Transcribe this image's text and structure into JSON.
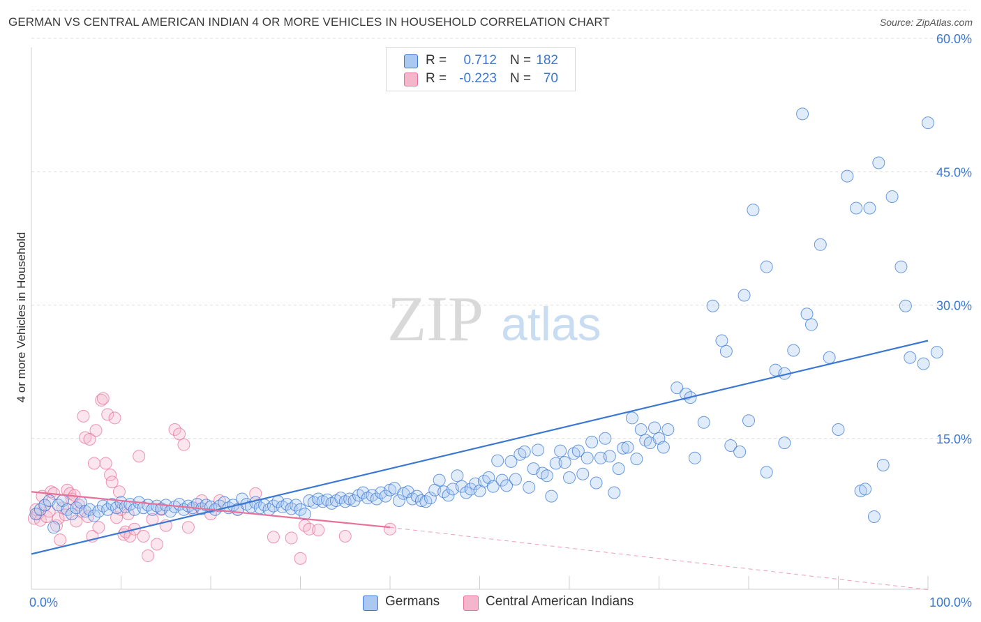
{
  "title": "GERMAN VS CENTRAL AMERICAN INDIAN 4 OR MORE VEHICLES IN HOUSEHOLD CORRELATION CHART",
  "source": "Source: ZipAtlas.com",
  "watermark": {
    "zip": "ZIP",
    "atlas": "atlas"
  },
  "colors": {
    "blue": "#3a78d4",
    "blue_fill": "#aac8f0",
    "pink": "#e8719a",
    "pink_fill": "#f4b6cb",
    "grid": "#dcdcdc",
    "axis_text": "#3a78d4"
  },
  "stats": {
    "r_label": "R =",
    "n_label": "N =",
    "rows": [
      {
        "series": "Germans",
        "r": "0.712",
        "n": "182"
      },
      {
        "series": "Central American Indians",
        "r": "-0.223",
        "n": "70"
      }
    ]
  },
  "legend": {
    "germans": "Germans",
    "cai": "Central American Indians"
  },
  "chart_data": {
    "type": "scatter",
    "title": "GERMAN VS CENTRAL AMERICAN INDIAN 4 OR MORE VEHICLES IN HOUSEHOLD CORRELATION CHART",
    "xlabel": "",
    "ylabel": "4 or more Vehicles in Household",
    "xlim": [
      0,
      100
    ],
    "ylim": [
      0,
      63
    ],
    "x_tick_labels": [
      {
        "value": 0,
        "label": "0.0%"
      },
      {
        "value": 100,
        "label": "100.0%"
      }
    ],
    "y_tick_labels": [
      {
        "value": 15,
        "label": "15.0%"
      },
      {
        "value": 30,
        "label": "30.0%"
      },
      {
        "value": 45,
        "label": "45.0%"
      },
      {
        "value": 60,
        "label": "60.0%"
      }
    ],
    "x_gridlines": [
      0,
      10,
      20,
      30,
      40,
      50,
      60,
      70,
      80,
      90,
      100
    ],
    "y_gridlines": [
      15,
      30,
      45,
      60
    ],
    "legend_position": "bottom-center",
    "series": [
      {
        "name": "Germans",
        "color": "#3a78d4",
        "trend": {
          "x": [
            0,
            100
          ],
          "y": [
            2.0,
            26.0
          ]
        },
        "points": [
          [
            0.5,
            6.5
          ],
          [
            1,
            7.0
          ],
          [
            1.5,
            7.5
          ],
          [
            2,
            8.0
          ],
          [
            2.5,
            5.0
          ],
          [
            3,
            7.5
          ],
          [
            3.5,
            8.0
          ],
          [
            4,
            7.0
          ],
          [
            4.5,
            6.5
          ],
          [
            5,
            7.2
          ],
          [
            5.5,
            7.8
          ],
          [
            6,
            6.8
          ],
          [
            6.5,
            7.0
          ],
          [
            7,
            6.3
          ],
          [
            7.5,
            6.8
          ],
          [
            8,
            7.4
          ],
          [
            8.5,
            7.0
          ],
          [
            9,
            7.6
          ],
          [
            9.5,
            7.2
          ],
          [
            10,
            7.8
          ],
          [
            10.5,
            7.3
          ],
          [
            11,
            7.6
          ],
          [
            11.5,
            7.0
          ],
          [
            12,
            7.8
          ],
          [
            12.5,
            7.2
          ],
          [
            13,
            7.5
          ],
          [
            13.5,
            7.0
          ],
          [
            14,
            7.4
          ],
          [
            14.5,
            7.1
          ],
          [
            15,
            7.5
          ],
          [
            15.5,
            6.8
          ],
          [
            16,
            7.3
          ],
          [
            16.5,
            7.6
          ],
          [
            17,
            7.0
          ],
          [
            17.5,
            7.4
          ],
          [
            18,
            7.2
          ],
          [
            18.5,
            7.6
          ],
          [
            19,
            7.1
          ],
          [
            19.5,
            7.5
          ],
          [
            20,
            7.3
          ],
          [
            20.5,
            7.0
          ],
          [
            21,
            7.4
          ],
          [
            21.5,
            7.8
          ],
          [
            22,
            7.2
          ],
          [
            22.5,
            7.5
          ],
          [
            23,
            7.0
          ],
          [
            23.5,
            8.2
          ],
          [
            24,
            7.6
          ],
          [
            24.5,
            7.3
          ],
          [
            25,
            7.8
          ],
          [
            25.5,
            7.2
          ],
          [
            26,
            7.5
          ],
          [
            26.5,
            7.0
          ],
          [
            27,
            7.4
          ],
          [
            27.5,
            7.9
          ],
          [
            28,
            7.3
          ],
          [
            28.5,
            7.6
          ],
          [
            29,
            7.1
          ],
          [
            29.5,
            7.5
          ],
          [
            30,
            7.0
          ],
          [
            30.5,
            6.5
          ],
          [
            31,
            8.0
          ],
          [
            31.5,
            7.8
          ],
          [
            32,
            8.2
          ],
          [
            32.5,
            7.9
          ],
          [
            33,
            8.1
          ],
          [
            33.5,
            7.7
          ],
          [
            34,
            8.0
          ],
          [
            34.5,
            8.3
          ],
          [
            35,
            7.9
          ],
          [
            35.5,
            8.2
          ],
          [
            36,
            8.0
          ],
          [
            36.5,
            8.6
          ],
          [
            37,
            8.9
          ],
          [
            37.5,
            8.3
          ],
          [
            38,
            8.6
          ],
          [
            38.5,
            8.2
          ],
          [
            39,
            8.9
          ],
          [
            39.5,
            8.5
          ],
          [
            40,
            9.2
          ],
          [
            40.5,
            9.4
          ],
          [
            41,
            8.0
          ],
          [
            41.5,
            8.8
          ],
          [
            42,
            9.0
          ],
          [
            42.5,
            8.2
          ],
          [
            43,
            8.5
          ],
          [
            43.5,
            8.0
          ],
          [
            44,
            7.9
          ],
          [
            44.5,
            8.3
          ],
          [
            45,
            9.2
          ],
          [
            45.5,
            10.3
          ],
          [
            46,
            9.0
          ],
          [
            46.5,
            8.6
          ],
          [
            47,
            9.3
          ],
          [
            47.5,
            10.8
          ],
          [
            48,
            9.6
          ],
          [
            48.5,
            8.9
          ],
          [
            49,
            9.3
          ],
          [
            49.5,
            9.9
          ],
          [
            50,
            9.1
          ],
          [
            50.5,
            10.2
          ],
          [
            51,
            10.6
          ],
          [
            51.5,
            9.6
          ],
          [
            52,
            12.5
          ],
          [
            52.5,
            10.3
          ],
          [
            53,
            9.7
          ],
          [
            53.5,
            12.4
          ],
          [
            54,
            10.4
          ],
          [
            54.5,
            13.2
          ],
          [
            55,
            13.5
          ],
          [
            55.5,
            9.5
          ],
          [
            56,
            11.6
          ],
          [
            56.5,
            13.7
          ],
          [
            57,
            11.1
          ],
          [
            57.5,
            10.8
          ],
          [
            58,
            8.5
          ],
          [
            58.5,
            12.2
          ],
          [
            59,
            13.6
          ],
          [
            59.5,
            12.3
          ],
          [
            60,
            10.6
          ],
          [
            60.5,
            13.3
          ],
          [
            61,
            13.6
          ],
          [
            61.5,
            11.0
          ],
          [
            62,
            12.8
          ],
          [
            62.5,
            14.6
          ],
          [
            63,
            10.0
          ],
          [
            63.5,
            12.8
          ],
          [
            64,
            15.0
          ],
          [
            64.5,
            13.0
          ],
          [
            65,
            8.9
          ],
          [
            65.5,
            11.6
          ],
          [
            66,
            13.9
          ],
          [
            66.5,
            14.0
          ],
          [
            67,
            17.3
          ],
          [
            67.5,
            12.7
          ],
          [
            68,
            16.0
          ],
          [
            68.5,
            14.8
          ],
          [
            69,
            14.5
          ],
          [
            69.5,
            16.2
          ],
          [
            70,
            15.0
          ],
          [
            70.5,
            14.0
          ],
          [
            71,
            16.0
          ],
          [
            72,
            20.7
          ],
          [
            73,
            20.0
          ],
          [
            73.5,
            19.6
          ],
          [
            74,
            12.8
          ],
          [
            75,
            16.8
          ],
          [
            76,
            29.9
          ],
          [
            77,
            26.0
          ],
          [
            77.5,
            24.8
          ],
          [
            78,
            14.2
          ],
          [
            79,
            13.5
          ],
          [
            79.5,
            31.1
          ],
          [
            80,
            17.0
          ],
          [
            80.5,
            40.7
          ],
          [
            82,
            34.3
          ],
          [
            82,
            11.2
          ],
          [
            83,
            22.7
          ],
          [
            84,
            14.5
          ],
          [
            84,
            22.3
          ],
          [
            85,
            24.9
          ],
          [
            86,
            51.5
          ],
          [
            86.5,
            29.0
          ],
          [
            87,
            27.8
          ],
          [
            88,
            36.8
          ],
          [
            89,
            24.1
          ],
          [
            90,
            16.0
          ],
          [
            91,
            44.5
          ],
          [
            92,
            40.9
          ],
          [
            92.5,
            9.1
          ],
          [
            93,
            9.3
          ],
          [
            93.5,
            40.9
          ],
          [
            94,
            6.2
          ],
          [
            94.5,
            46.0
          ],
          [
            95,
            12.0
          ],
          [
            96,
            42.2
          ],
          [
            97,
            34.3
          ],
          [
            97.5,
            29.9
          ],
          [
            98,
            24.1
          ],
          [
            99.5,
            23.4
          ],
          [
            100,
            50.5
          ],
          [
            101,
            24.7
          ]
        ]
      },
      {
        "name": "Central American Indians",
        "color": "#e8719a",
        "trend": {
          "x": [
            0,
            40
          ],
          "y": [
            9.0,
            5.0
          ]
        },
        "trend_extension": {
          "x": [
            40,
            100
          ],
          "y": [
            5.0,
            -2.0
          ]
        },
        "points": [
          [
            0.3,
            6.0
          ],
          [
            0.5,
            7.0
          ],
          [
            0.7,
            6.5
          ],
          [
            1.0,
            5.8
          ],
          [
            1.2,
            8.5
          ],
          [
            1.5,
            7.5
          ],
          [
            1.7,
            6.2
          ],
          [
            2.0,
            6.8
          ],
          [
            2.2,
            9.0
          ],
          [
            2.5,
            8.8
          ],
          [
            2.8,
            5.2
          ],
          [
            3.0,
            6.0
          ],
          [
            3.2,
            3.6
          ],
          [
            3.5,
            7.2
          ],
          [
            3.8,
            6.4
          ],
          [
            4.0,
            9.2
          ],
          [
            4.3,
            8.8
          ],
          [
            4.5,
            8.2
          ],
          [
            4.8,
            8.6
          ],
          [
            5.0,
            5.7
          ],
          [
            5.3,
            7.5
          ],
          [
            5.5,
            6.8
          ],
          [
            5.8,
            17.5
          ],
          [
            6.0,
            15.1
          ],
          [
            6.3,
            6.2
          ],
          [
            6.5,
            14.9
          ],
          [
            6.8,
            4.0
          ],
          [
            7.0,
            12.2
          ],
          [
            7.2,
            15.9
          ],
          [
            7.5,
            5.0
          ],
          [
            7.8,
            19.3
          ],
          [
            8.0,
            19.5
          ],
          [
            8.3,
            12.2
          ],
          [
            8.5,
            17.7
          ],
          [
            8.8,
            10.9
          ],
          [
            9.0,
            10.1
          ],
          [
            9.3,
            17.3
          ],
          [
            9.5,
            6.1
          ],
          [
            9.8,
            9.0
          ],
          [
            10.0,
            7.0
          ],
          [
            10.3,
            4.2
          ],
          [
            10.5,
            4.5
          ],
          [
            10.8,
            6.5
          ],
          [
            11.0,
            4.0
          ],
          [
            11.5,
            4.8
          ],
          [
            12.0,
            13.0
          ],
          [
            12.5,
            4.0
          ],
          [
            13.0,
            1.8
          ],
          [
            13.5,
            5.9
          ],
          [
            14.0,
            3.1
          ],
          [
            14.5,
            7.0
          ],
          [
            15.0,
            5.2
          ],
          [
            16.0,
            16.0
          ],
          [
            16.5,
            15.5
          ],
          [
            17.0,
            14.3
          ],
          [
            17.5,
            5.0
          ],
          [
            18.0,
            7.0
          ],
          [
            19.0,
            8.0
          ],
          [
            20.0,
            6.5
          ],
          [
            21.0,
            8.0
          ],
          [
            23.0,
            7.0
          ],
          [
            25.0,
            8.8
          ],
          [
            27.0,
            3.9
          ],
          [
            29.0,
            3.8
          ],
          [
            30.0,
            1.5
          ],
          [
            30.5,
            5.2
          ],
          [
            31.0,
            4.8
          ],
          [
            32.0,
            4.7
          ],
          [
            35.0,
            4.0
          ],
          [
            40.0,
            4.8
          ]
        ]
      }
    ]
  }
}
